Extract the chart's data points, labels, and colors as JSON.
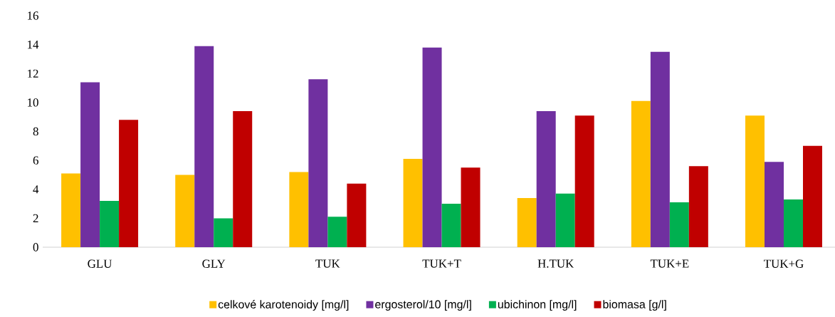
{
  "chart_data": {
    "type": "bar",
    "categories": [
      "GLU",
      "GLY",
      "TUK",
      "TUK+T",
      "H.TUK",
      "TUK+E",
      "TUK+G"
    ],
    "series": [
      {
        "name": "celkové karotenoidy [mg/l]",
        "color": "#ffc000",
        "values": [
          5.1,
          5.0,
          5.2,
          6.1,
          3.4,
          10.1,
          9.1
        ]
      },
      {
        "name": "ergosterol/10 [mg/l]",
        "color": "#7030a0",
        "values": [
          11.4,
          13.9,
          11.6,
          13.8,
          9.4,
          13.5,
          5.9
        ]
      },
      {
        "name": "ubichinon [mg/l]",
        "color": "#00b050",
        "values": [
          3.2,
          2.0,
          2.1,
          3.0,
          3.7,
          3.1,
          3.3
        ]
      },
      {
        "name": "biomasa [g/l]",
        "color": "#c00000",
        "values": [
          8.8,
          9.4,
          4.4,
          5.5,
          9.1,
          5.6,
          7.0
        ]
      }
    ],
    "ylim": [
      0,
      16
    ],
    "yticks": [
      0,
      2,
      4,
      6,
      8,
      10,
      12,
      14,
      16
    ],
    "grid": false,
    "legend": "bottom"
  }
}
